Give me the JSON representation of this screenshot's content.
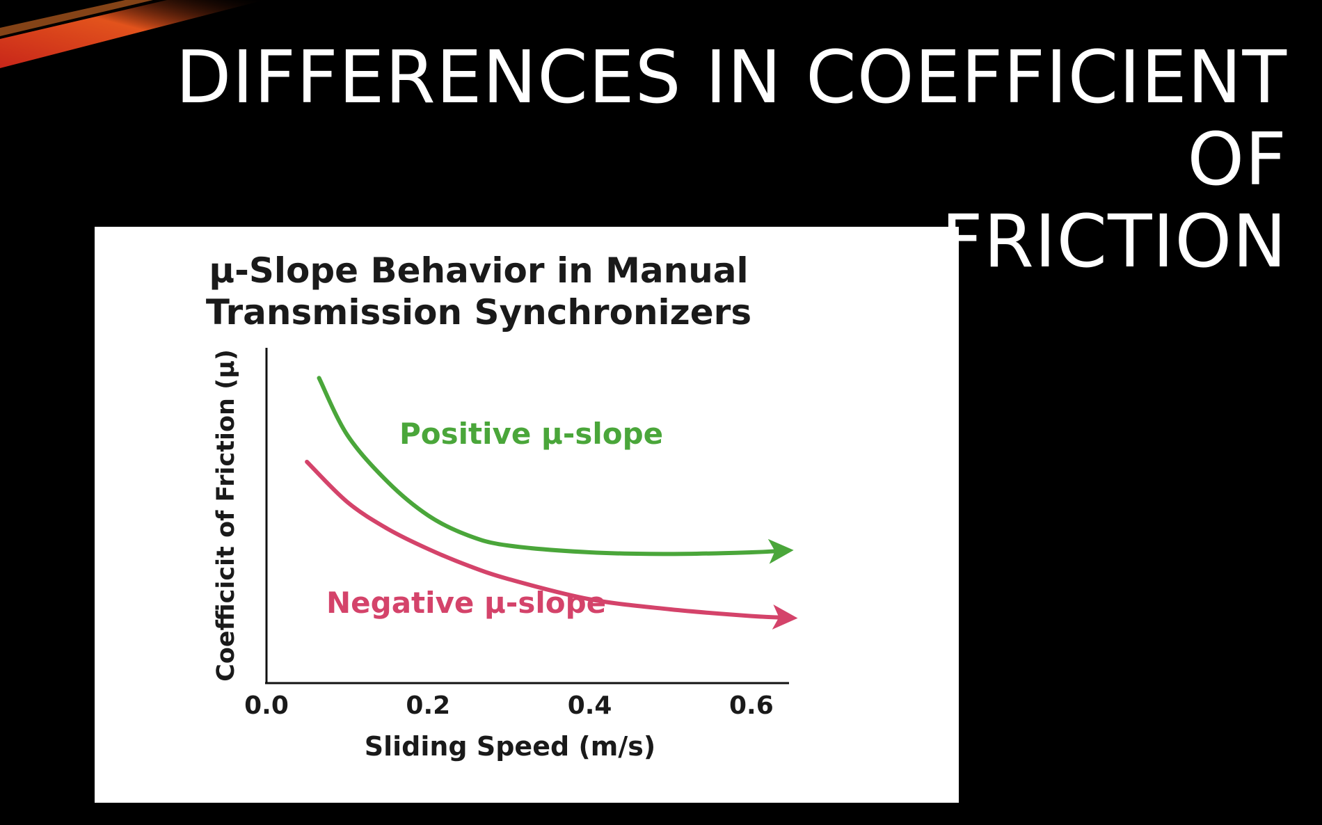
{
  "slide": {
    "title_line1": "DIFFERENCES IN COEFFICIENT OF",
    "title_line2": "FRICTION"
  },
  "colors": {
    "background": "#000000",
    "panel": "#ffffff",
    "positive": "#4aa63a",
    "negative": "#d4436a",
    "axis": "#111111",
    "accent": "#e2531c"
  },
  "chart_data": {
    "type": "line",
    "title_line1": "μ-Slope Behavior in Manual",
    "title_line2": "Transmission Synchronizers",
    "xlabel": "Sliding Speed (m/s)",
    "ylabel": "Coefficicit of Friction (μ)",
    "xlim": [
      0.0,
      0.7
    ],
    "ylim": [
      0,
      1
    ],
    "x_ticks": [
      "0.0",
      "0.2",
      "0.4",
      "0.6"
    ],
    "x_tick_values": [
      0.0,
      0.2,
      0.4,
      0.6
    ],
    "grid": false,
    "series": [
      {
        "name": "Positive μ-slope",
        "color": "#4aa63a",
        "points": [
          [
            0.065,
            0.91
          ],
          [
            0.1,
            0.74
          ],
          [
            0.15,
            0.6
          ],
          [
            0.2,
            0.5
          ],
          [
            0.25,
            0.44
          ],
          [
            0.3,
            0.41
          ],
          [
            0.4,
            0.39
          ],
          [
            0.5,
            0.385
          ],
          [
            0.6,
            0.39
          ],
          [
            0.64,
            0.395
          ]
        ]
      },
      {
        "name": "Negative μ-slope",
        "color": "#d4436a",
        "points": [
          [
            0.05,
            0.66
          ],
          [
            0.1,
            0.54
          ],
          [
            0.15,
            0.46
          ],
          [
            0.2,
            0.4
          ],
          [
            0.25,
            0.35
          ],
          [
            0.3,
            0.31
          ],
          [
            0.4,
            0.25
          ],
          [
            0.5,
            0.22
          ],
          [
            0.6,
            0.2
          ],
          [
            0.645,
            0.195
          ]
        ]
      }
    ]
  }
}
